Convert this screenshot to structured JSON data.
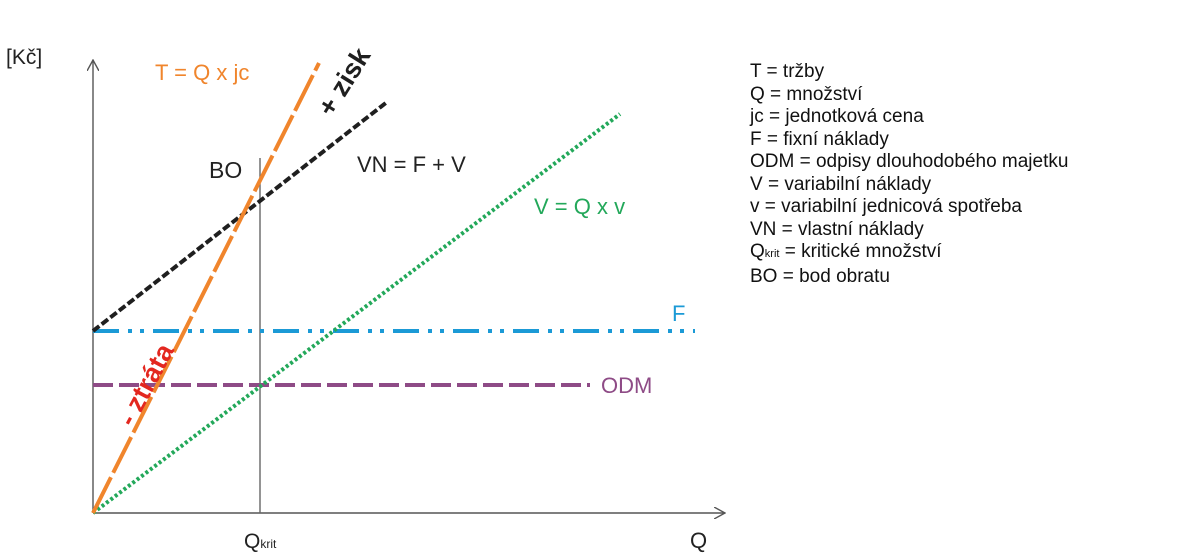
{
  "axes": {
    "y_label": "[Kč]",
    "x_label": "Q",
    "qkrit_label": {
      "main": "Q",
      "sub": "krit"
    }
  },
  "lines": {
    "revenue": {
      "label": "T = Q x jc",
      "color": "#f0852c"
    },
    "total_costs": {
      "label": "VN = F + V",
      "color": "#1f1f1f"
    },
    "variable_costs": {
      "label": "V = Q x v",
      "color": "#23a85a"
    },
    "fixed_costs": {
      "label": "F",
      "color": "#1b9ad6"
    },
    "depreciation": {
      "label": "ODM",
      "color": "#8e4b86"
    }
  },
  "annotations": {
    "break_even": "BO",
    "profit": "+ zisk",
    "loss": "- ztráta",
    "profit_color": "#1f1f1f",
    "loss_color": "#e3271f"
  },
  "legend": [
    {
      "text": "T = tržby"
    },
    {
      "text": "Q = množství"
    },
    {
      "text": "jc = jednotková cena"
    },
    {
      "text": "F = fixní náklady"
    },
    {
      "text": "ODM = odpisy dlouhodobého majetku"
    },
    {
      "text": "V = variabilní náklady"
    },
    {
      "text": "v = variabilní jednicová spotřeba"
    },
    {
      "text": "VN = vlastní náklady"
    },
    {
      "q_main": "Q",
      "q_sub": "krit",
      "text": " = kritické množství"
    },
    {
      "text": "BO = bod obratu"
    }
  ]
}
